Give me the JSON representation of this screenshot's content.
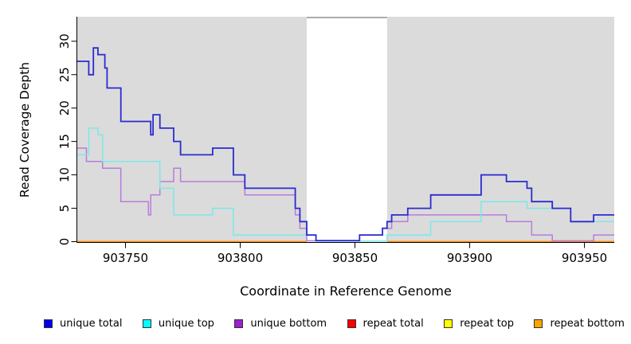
{
  "chart_data": {
    "type": "line",
    "subtype": "step-coverage",
    "title": "",
    "xlabel": "Coordinate in Reference Genome",
    "ylabel": "Read Coverage Depth",
    "xlim": [
      903729,
      903963
    ],
    "ylim": [
      0,
      33.7
    ],
    "x_ticks": [
      903750,
      903800,
      903850,
      903900,
      903950
    ],
    "y_ticks": [
      0,
      5,
      10,
      15,
      20,
      25,
      30
    ],
    "grid": "off",
    "legend_position": "bottom",
    "plot_bg": "#DBDBDB",
    "masked_region": {
      "start": 903829,
      "end": 903864,
      "color": "#FFFFFF",
      "edge": "#A6A6A6"
    },
    "series": [
      {
        "name": "unique total",
        "color": "#2B2BD0",
        "steps": [
          [
            903729,
            27
          ],
          [
            903734,
            25
          ],
          [
            903736,
            29
          ],
          [
            903738,
            28
          ],
          [
            903741,
            26
          ],
          [
            903742,
            23
          ],
          [
            903748,
            18
          ],
          [
            903761,
            16
          ],
          [
            903762,
            19
          ],
          [
            903765,
            17
          ],
          [
            903771,
            15
          ],
          [
            903774,
            13
          ],
          [
            903788,
            14
          ],
          [
            903797,
            10
          ],
          [
            903802,
            8
          ],
          [
            903824,
            5
          ],
          [
            903826,
            3
          ],
          [
            903829,
            1
          ],
          [
            903833,
            0
          ],
          [
            903852,
            1
          ],
          [
            903862,
            2
          ],
          [
            903864,
            3
          ],
          [
            903866,
            4
          ],
          [
            903873,
            5
          ],
          [
            903883,
            7
          ],
          [
            903905,
            10
          ],
          [
            903916,
            9
          ],
          [
            903925,
            8
          ],
          [
            903927,
            6
          ],
          [
            903936,
            5
          ],
          [
            903944,
            3
          ],
          [
            903954,
            4
          ]
        ]
      },
      {
        "name": "unique top",
        "color": "#7CE8E8",
        "steps": [
          [
            903729,
            13
          ],
          [
            903734,
            17
          ],
          [
            903738,
            16
          ],
          [
            903740,
            12
          ],
          [
            903765,
            8
          ],
          [
            903771,
            4
          ],
          [
            903788,
            5
          ],
          [
            903797,
            1
          ],
          [
            903833,
            0
          ],
          [
            903864,
            1
          ],
          [
            903883,
            3
          ],
          [
            903905,
            6
          ],
          [
            903925,
            5
          ],
          [
            903944,
            3
          ]
        ]
      },
      {
        "name": "unique bottom",
        "color": "#B77CDC",
        "steps": [
          [
            903729,
            14
          ],
          [
            903733,
            12
          ],
          [
            903740,
            11
          ],
          [
            903748,
            6
          ],
          [
            903760,
            4
          ],
          [
            903761,
            7
          ],
          [
            903765,
            9
          ],
          [
            903771,
            11
          ],
          [
            903774,
            9
          ],
          [
            903802,
            7
          ],
          [
            903824,
            4
          ],
          [
            903826,
            2
          ],
          [
            903829,
            0
          ],
          [
            903852,
            1
          ],
          [
            903862,
            2
          ],
          [
            903866,
            3
          ],
          [
            903873,
            4
          ],
          [
            903916,
            3
          ],
          [
            903927,
            1
          ],
          [
            903936,
            0
          ],
          [
            903954,
            1
          ]
        ]
      },
      {
        "name": "repeat total",
        "color": "#CC3355",
        "steps": [
          [
            903729,
            0
          ]
        ]
      },
      {
        "name": "repeat top",
        "color": "#E8E800",
        "steps": [
          [
            903729,
            0
          ]
        ]
      },
      {
        "name": "repeat bottom",
        "color": "#FF8C00",
        "steps": [
          [
            903729,
            0
          ]
        ]
      }
    ]
  },
  "legend": {
    "items": [
      {
        "label": "unique total",
        "color": "#0000EE"
      },
      {
        "label": "unique top",
        "color": "#00FFFF"
      },
      {
        "label": "unique bottom",
        "color": "#9A20D0"
      },
      {
        "label": "repeat total",
        "color": "#FF0000"
      },
      {
        "label": "repeat top",
        "color": "#FFFF00"
      },
      {
        "label": "repeat bottom",
        "color": "#FFA500"
      }
    ]
  }
}
